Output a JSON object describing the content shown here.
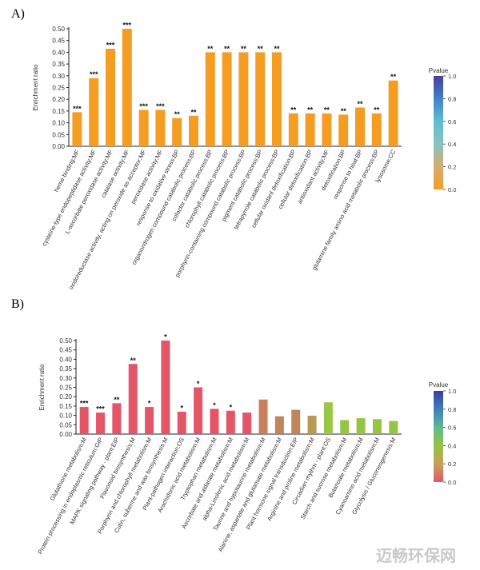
{
  "watermark": "迈畅环保网",
  "chart_data": [
    {
      "panel_label": "A)",
      "type": "bar",
      "ylabel": "Enrichment ratio",
      "ylim": [
        0,
        0.5
      ],
      "yticks": [
        "0.00",
        "0.05",
        "0.10",
        "0.15",
        "0.20",
        "0.25",
        "0.30",
        "0.35",
        "0.40",
        "0.45",
        "0.50"
      ],
      "legend": {
        "title": "Pvalue",
        "ticks": [
          "1.0",
          "0.8",
          "0.6",
          "0.4",
          "0.2",
          "0.0"
        ],
        "colors": [
          "#4b3f9b",
          "#3f82c4",
          "#61bfd2",
          "#88c2c1",
          "#d6ad6c",
          "#f59d23"
        ],
        "position": "right"
      },
      "categories": [
        "heme binding:MF",
        "cysteine-type endopeptidase activity:MF",
        "L-ascorbate peroxidase activity:MF",
        "catalase activity:MF",
        "oxidoreductase activity, acting on peroxide as acceptor:MF",
        "peroxidase activity:MF",
        "response to oxidative stress:BP",
        "organonitrogen compound catabolic process:BP",
        "cofactor catabolic process:BP",
        "chlorophyll catabolic process:BP",
        "porphyrin-containing compound catabolic process:BP",
        "pigment catabolic process:BP",
        "tetrapyrrole catabolic process:BP",
        "cellular oxidant detoxification:BP",
        "cellular detoxification:BP",
        "antioxidant activity:MF",
        "detoxification:BP",
        "response to heat:BP",
        "glutamine family amino acid metabolic process:BP",
        "lysosome:CC"
      ],
      "values": [
        0.145,
        0.29,
        0.415,
        0.5,
        0.155,
        0.155,
        0.12,
        0.13,
        0.4,
        0.4,
        0.4,
        0.4,
        0.4,
        0.14,
        0.14,
        0.14,
        0.135,
        0.165,
        0.14,
        0.28
      ],
      "significance": [
        "***",
        "***",
        "***",
        "***",
        "***",
        "***",
        "**",
        "**",
        "**",
        "**",
        "**",
        "**",
        "**",
        "**",
        "**",
        "**",
        "**",
        "**",
        "**",
        "**"
      ],
      "colors": [
        "#f59d23",
        "#f59d23",
        "#f59d23",
        "#f59d23",
        "#f59d23",
        "#f59d23",
        "#f59d23",
        "#f59d23",
        "#f59d23",
        "#f59d23",
        "#f59d23",
        "#f59d23",
        "#f59d23",
        "#f59d23",
        "#f59d23",
        "#f59d23",
        "#f59d23",
        "#f59d23",
        "#f59d23",
        "#f59d23"
      ]
    },
    {
      "panel_label": "B)",
      "type": "bar",
      "ylabel": "Enrichment ratio",
      "ylim": [
        0,
        0.5
      ],
      "yticks": [
        "0.00",
        "0.05",
        "0.10",
        "0.15",
        "0.20",
        "0.25",
        "0.30",
        "0.35",
        "0.40",
        "0.45",
        "0.50"
      ],
      "legend": {
        "title": "Pvalue",
        "ticks": [
          "1.0",
          "0.8",
          "0.6",
          "0.4",
          "0.2",
          "0.0"
        ],
        "colors": [
          "#3b3f9a",
          "#3d7fbc",
          "#5fb98d",
          "#96c443",
          "#c8a05a",
          "#e2556a"
        ],
        "position": "right"
      },
      "categories": [
        "Glutathione metabolism:M",
        "Protein processing in endoplasmic reticulum:GIP",
        "MAPK signaling pathway - plant:EIP",
        "Flavonoid biosynthesis:M",
        "Porphyrin and chlorophyll metabolism:M",
        "Cutin, suberine and wax biosynthesis:M",
        "Plant-pathogen interaction:OS",
        "Arachidonic acid metabolism:M",
        "Tryptophan metabolism:M",
        "Ascorbate and aldarate metabolism:M",
        "alpha-Linolenic acid metabolism:M",
        "Taurine and hypotaurine metabolism:M",
        "Alanine, aspartate and glutamate metabolism:M",
        "Plant hormone signal transduction:EIP",
        "Arginine and proline metabolism:M",
        "Circadian rhythm - plant:OS",
        "Starch and sucrose metabolism:M",
        "Butanoate metabolism:M",
        "Cyanoamino acid metabolism:M",
        "Glycolysis / Gluconeogenesis:M"
      ],
      "values": [
        0.145,
        0.115,
        0.165,
        0.375,
        0.145,
        0.5,
        0.12,
        0.25,
        0.135,
        0.125,
        0.115,
        0.185,
        0.095,
        0.13,
        0.098,
        0.17,
        0.075,
        0.085,
        0.08,
        0.07
      ],
      "significance": [
        "***",
        "***",
        "**",
        "**",
        "*",
        "*",
        "*",
        "*",
        "*",
        "*",
        "",
        "",
        "",
        "",
        "",
        "",
        "",
        "",
        "",
        ""
      ],
      "colors": [
        "#e45568",
        "#e45568",
        "#e45568",
        "#e45568",
        "#e45568",
        "#e45568",
        "#e45568",
        "#e45568",
        "#e45568",
        "#e45568",
        "#e45568",
        "#c8805e",
        "#c0855a",
        "#c0855a",
        "#b79a55",
        "#9bc746",
        "#96c443",
        "#96c443",
        "#96c443",
        "#96c443"
      ]
    }
  ]
}
